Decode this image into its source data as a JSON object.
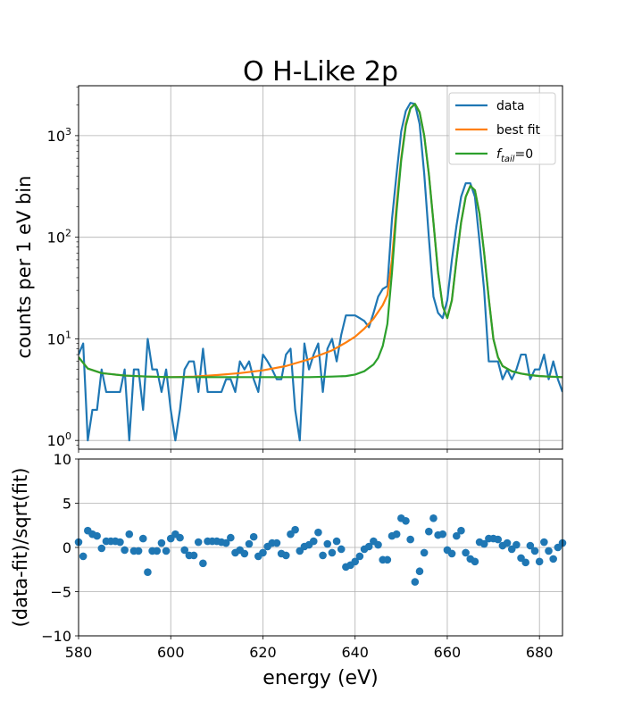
{
  "title": "O H-Like 2p",
  "chart_data": [
    {
      "type": "line",
      "title": "O H-Like 2p",
      "xlabel": "",
      "ylabel": "counts per 1 eV bin",
      "yscale": "log",
      "xlim": [
        580,
        685
      ],
      "ylim": [
        0.82,
        3100
      ],
      "grid": true,
      "legend_position": "top-right",
      "y_ticks": [
        {
          "value": 1,
          "base": "10",
          "exp": "0"
        },
        {
          "value": 10,
          "base": "10",
          "exp": "1"
        },
        {
          "value": 100,
          "base": "10",
          "exp": "2"
        },
        {
          "value": 1000,
          "base": "10",
          "exp": "3"
        }
      ],
      "series": [
        {
          "name": "data",
          "legend": {
            "base": "data",
            "sub": "",
            "rest": ""
          },
          "color": "#1f77b4",
          "x": [
            580,
            581,
            582,
            583,
            584,
            585,
            586,
            587,
            588,
            589,
            590,
            591,
            592,
            593,
            594,
            595,
            596,
            597,
            598,
            599,
            600,
            601,
            602,
            603,
            604,
            605,
            606,
            607,
            608,
            609,
            610,
            611,
            612,
            613,
            614,
            615,
            616,
            617,
            618,
            619,
            620,
            621,
            622,
            623,
            624,
            625,
            626,
            627,
            628,
            629,
            630,
            631,
            632,
            633,
            634,
            635,
            636,
            637,
            638,
            639,
            640,
            641,
            642,
            643,
            644,
            645,
            646,
            647,
            648,
            649,
            650,
            651,
            652,
            653,
            654,
            655,
            656,
            657,
            658,
            659,
            660,
            661,
            662,
            663,
            664,
            665,
            666,
            667,
            668,
            669,
            670,
            671,
            672,
            673,
            674,
            675,
            676,
            677,
            678,
            679,
            680,
            681,
            682,
            683,
            684,
            685
          ],
          "values": [
            7,
            9,
            1,
            2,
            2,
            5,
            3,
            3,
            3,
            3,
            5,
            1,
            5,
            5,
            2,
            10,
            5,
            5,
            3,
            5,
            2,
            1,
            2,
            5,
            6,
            6,
            3,
            8,
            3,
            3,
            3,
            3,
            4,
            4,
            3,
            6,
            5,
            6,
            4,
            3,
            7,
            6,
            5,
            4,
            4,
            7,
            8,
            2,
            1,
            9,
            5,
            7,
            9,
            3,
            8,
            10,
            6,
            11,
            17,
            17,
            17,
            16,
            15,
            13,
            18,
            26,
            31,
            33,
            150,
            420,
            1100,
            1750,
            2100,
            2050,
            1300,
            420,
            100,
            26,
            18,
            16,
            24,
            60,
            130,
            250,
            340,
            340,
            250,
            90,
            30,
            6,
            6,
            6,
            4,
            5,
            4,
            5,
            7,
            7,
            4,
            5,
            5,
            7,
            4,
            6,
            4,
            3
          ]
        },
        {
          "name": "best fit",
          "legend": {
            "base": "best fit",
            "sub": "",
            "rest": ""
          },
          "color": "#ff7f0e",
          "x": [
            580,
            582,
            585,
            590,
            595,
            600,
            605,
            610,
            615,
            620,
            625,
            630,
            635,
            638,
            640,
            642,
            644,
            646,
            647,
            648,
            649,
            650,
            651,
            652,
            653,
            654,
            655,
            656,
            657,
            658,
            659,
            660,
            661,
            662,
            663,
            664,
            665,
            666,
            667,
            668,
            669,
            670,
            671,
            672,
            674,
            676,
            678,
            680,
            682,
            685
          ],
          "values": [
            6.6,
            5.1,
            4.6,
            4.35,
            4.25,
            4.2,
            4.25,
            4.4,
            4.6,
            4.9,
            5.4,
            6.3,
            7.7,
            9.2,
            10.5,
            12.6,
            15.8,
            21.5,
            27,
            60,
            210,
            600,
            1300,
            1870,
            2050,
            1700,
            1000,
            420,
            140,
            45,
            21,
            16,
            24,
            60,
            140,
            250,
            320,
            290,
            170,
            70,
            25,
            10,
            6.6,
            5.4,
            4.8,
            4.55,
            4.4,
            4.3,
            4.25,
            4.2
          ]
        },
        {
          "name": "f_tail=0",
          "legend": {
            "base": "f",
            "sub": "tail",
            "rest": "=0"
          },
          "color": "#2ca02c",
          "x": [
            580,
            582,
            585,
            590,
            595,
            600,
            605,
            610,
            615,
            620,
            625,
            630,
            635,
            638,
            640,
            642,
            644,
            645,
            646,
            647,
            648,
            649,
            650,
            651,
            652,
            653,
            654,
            655,
            656,
            657,
            658,
            659,
            660,
            661,
            662,
            663,
            664,
            665,
            666,
            667,
            668,
            669,
            670,
            671,
            672,
            674,
            676,
            678,
            680,
            682,
            685
          ],
          "values": [
            6.6,
            5.1,
            4.6,
            4.35,
            4.25,
            4.2,
            4.2,
            4.2,
            4.2,
            4.2,
            4.2,
            4.2,
            4.25,
            4.3,
            4.45,
            4.8,
            5.6,
            6.5,
            8.5,
            14,
            45,
            180,
            570,
            1250,
            1850,
            2050,
            1700,
            1000,
            420,
            140,
            45,
            21,
            16,
            24,
            60,
            140,
            250,
            320,
            290,
            170,
            70,
            25,
            10,
            6.6,
            5.4,
            4.8,
            4.55,
            4.4,
            4.3,
            4.25,
            4.2
          ]
        }
      ]
    },
    {
      "type": "scatter",
      "title": "",
      "xlabel": "energy (eV)",
      "ylabel": "(data-fit)/sqrt(fit)",
      "xlim": [
        580,
        685
      ],
      "ylim": [
        -10,
        10
      ],
      "grid": true,
      "x_ticks": [
        "580",
        "600",
        "620",
        "640",
        "660",
        "680"
      ],
      "y_ticks": [
        "10",
        "5",
        "0",
        "−5",
        "−10"
      ],
      "color": "#1f77b4",
      "points": [
        [
          580,
          0.6
        ],
        [
          581,
          -1.0
        ],
        [
          582,
          1.9
        ],
        [
          583,
          1.5
        ],
        [
          584,
          1.3
        ],
        [
          585,
          -0.1
        ],
        [
          586,
          0.7
        ],
        [
          587,
          0.7
        ],
        [
          588,
          0.7
        ],
        [
          589,
          0.6
        ],
        [
          590,
          -0.3
        ],
        [
          591,
          1.5
        ],
        [
          592,
          -0.4
        ],
        [
          593,
          -0.4
        ],
        [
          594,
          1.0
        ],
        [
          595,
          -2.8
        ],
        [
          596,
          -0.4
        ],
        [
          597,
          -0.4
        ],
        [
          598,
          0.5
        ],
        [
          599,
          -0.4
        ],
        [
          600,
          1.0
        ],
        [
          601,
          1.5
        ],
        [
          602,
          1.1
        ],
        [
          603,
          -0.3
        ],
        [
          604,
          -0.9
        ],
        [
          605,
          -0.9
        ],
        [
          606,
          0.6
        ],
        [
          607,
          -1.8
        ],
        [
          608,
          0.7
        ],
        [
          609,
          0.7
        ],
        [
          610,
          0.7
        ],
        [
          611,
          0.6
        ],
        [
          612,
          0.5
        ],
        [
          613,
          1.1
        ],
        [
          614,
          -0.6
        ],
        [
          615,
          -0.3
        ],
        [
          616,
          -0.7
        ],
        [
          617,
          0.4
        ],
        [
          618,
          1.2
        ],
        [
          619,
          -1.0
        ],
        [
          620,
          -0.6
        ],
        [
          621,
          0.1
        ],
        [
          622,
          0.5
        ],
        [
          623,
          0.5
        ],
        [
          624,
          -0.7
        ],
        [
          625,
          -0.9
        ],
        [
          626,
          1.5
        ],
        [
          627,
          2.0
        ],
        [
          628,
          -0.4
        ],
        [
          629,
          0.1
        ],
        [
          630,
          0.3
        ],
        [
          631,
          0.7
        ],
        [
          632,
          1.7
        ],
        [
          633,
          -0.9
        ],
        [
          634,
          0.4
        ],
        [
          635,
          -0.6
        ],
        [
          636,
          0.7
        ],
        [
          637,
          -0.2
        ],
        [
          638,
          -2.2
        ],
        [
          639,
          -2.0
        ],
        [
          640,
          -1.6
        ],
        [
          641,
          -1.0
        ],
        [
          642,
          -0.2
        ],
        [
          643,
          0.1
        ],
        [
          644,
          0.7
        ],
        [
          645,
          0.3
        ],
        [
          646,
          -1.4
        ],
        [
          647,
          -1.4
        ],
        [
          648,
          1.3
        ],
        [
          649,
          1.5
        ],
        [
          650,
          3.3
        ],
        [
          651,
          3.0
        ],
        [
          652,
          0.9
        ],
        [
          653,
          -3.9
        ],
        [
          654,
          -2.7
        ],
        [
          655,
          -0.6
        ],
        [
          656,
          1.8
        ],
        [
          657,
          3.3
        ],
        [
          658,
          1.4
        ],
        [
          659,
          1.5
        ],
        [
          660,
          -0.3
        ],
        [
          661,
          -0.7
        ],
        [
          662,
          1.3
        ],
        [
          663,
          1.9
        ],
        [
          664,
          -0.6
        ],
        [
          665,
          -1.3
        ],
        [
          666,
          -1.6
        ],
        [
          667,
          0.6
        ],
        [
          668,
          0.4
        ],
        [
          669,
          1.0
        ],
        [
          670,
          1.0
        ],
        [
          671,
          0.9
        ],
        [
          672,
          0.2
        ],
        [
          673,
          0.5
        ],
        [
          674,
          -0.2
        ],
        [
          675,
          0.3
        ],
        [
          676,
          -1.2
        ],
        [
          677,
          -1.7
        ],
        [
          678,
          0.2
        ],
        [
          679,
          -0.4
        ],
        [
          680,
          -1.6
        ],
        [
          681,
          0.6
        ],
        [
          682,
          -0.4
        ],
        [
          683,
          -1.3
        ],
        [
          684,
          0.0
        ],
        [
          685,
          0.5
        ]
      ]
    }
  ]
}
